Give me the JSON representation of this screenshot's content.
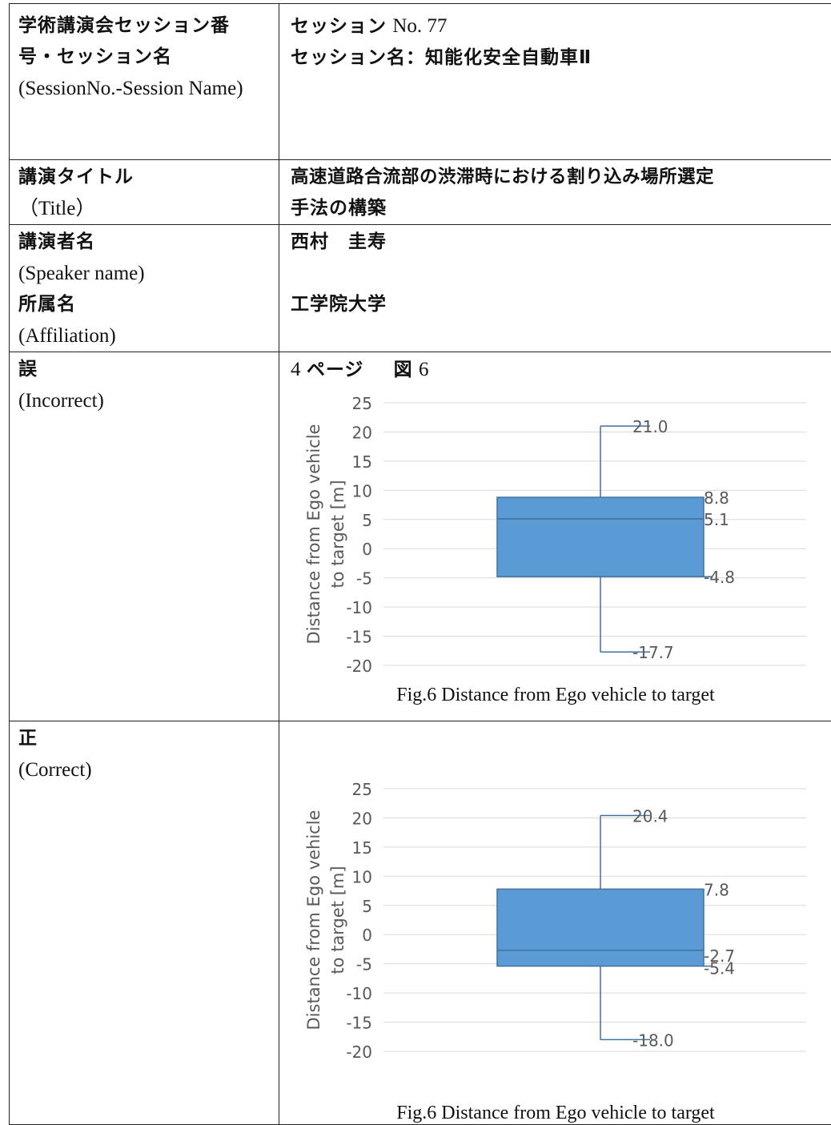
{
  "session": {
    "label_ja": "学術講演会セッション番号・セッション名",
    "label_en": "(SessionNo.-Session Name)",
    "number_prefix": "セッション",
    "number_en": "No. 77",
    "name": "セッション名：知能化安全自動車Ⅱ"
  },
  "title": {
    "label_ja": "講演タイトル",
    "label_en": "（Title）",
    "value_line1": "高速道路合流部の渋滞時における割り込み場所選定",
    "value_line2": "手法の構築"
  },
  "speaker": {
    "label_ja": "講演者名",
    "label_en": "(Speaker name)",
    "name": "西村　圭寿"
  },
  "affiliation": {
    "label_ja": "所属名",
    "label_en": "(Affiliation)",
    "value": "工学院大学"
  },
  "incorrect": {
    "label_ja": "誤",
    "label_en": "(Incorrect)",
    "location_num1": "4",
    "location_page": "ページ",
    "location_fig": "図",
    "location_num2": "6",
    "caption": "Fig.6 Distance from Ego vehicle to target"
  },
  "correct": {
    "label_ja": "正",
    "label_en": "(Correct)",
    "caption": "Fig.6 Distance from Ego vehicle to target"
  },
  "colors": {
    "box_fill": "#5b9bd5",
    "box_stroke": "#41719c",
    "grid": "#d9d9d9",
    "tick_text": "#595959"
  },
  "chart_data": [
    {
      "type": "boxplot",
      "ylabel_line1": "Distance from Ego vehicle",
      "ylabel_line2": "to target [m]",
      "ylim": [
        -20,
        25
      ],
      "yticks": [
        "25",
        "20",
        "15",
        "10",
        "5",
        "0",
        "-5",
        "-10",
        "-15",
        "-20"
      ],
      "grid": true,
      "min": -17.7,
      "q1": -4.8,
      "median": 5.1,
      "q3": 8.8,
      "max": 21.0,
      "labels": {
        "max": "21.0",
        "q3": "8.8",
        "median": "5.1",
        "q1": "-4.8",
        "min": "-17.7"
      }
    },
    {
      "type": "boxplot",
      "ylabel_line1": "Distance from Ego vehicle",
      "ylabel_line2": "to target [m]",
      "ylim": [
        -20,
        25
      ],
      "yticks": [
        "25",
        "20",
        "15",
        "10",
        "5",
        "0",
        "-5",
        "-10",
        "-15",
        "-20"
      ],
      "grid": true,
      "min": -18.0,
      "q1": -5.4,
      "median": -2.7,
      "q3": 7.8,
      "max": 20.4,
      "labels": {
        "max": "20.4",
        "q3": "7.8",
        "median": "-2.7",
        "q1": "-5.4",
        "min": "-18.0"
      }
    }
  ]
}
